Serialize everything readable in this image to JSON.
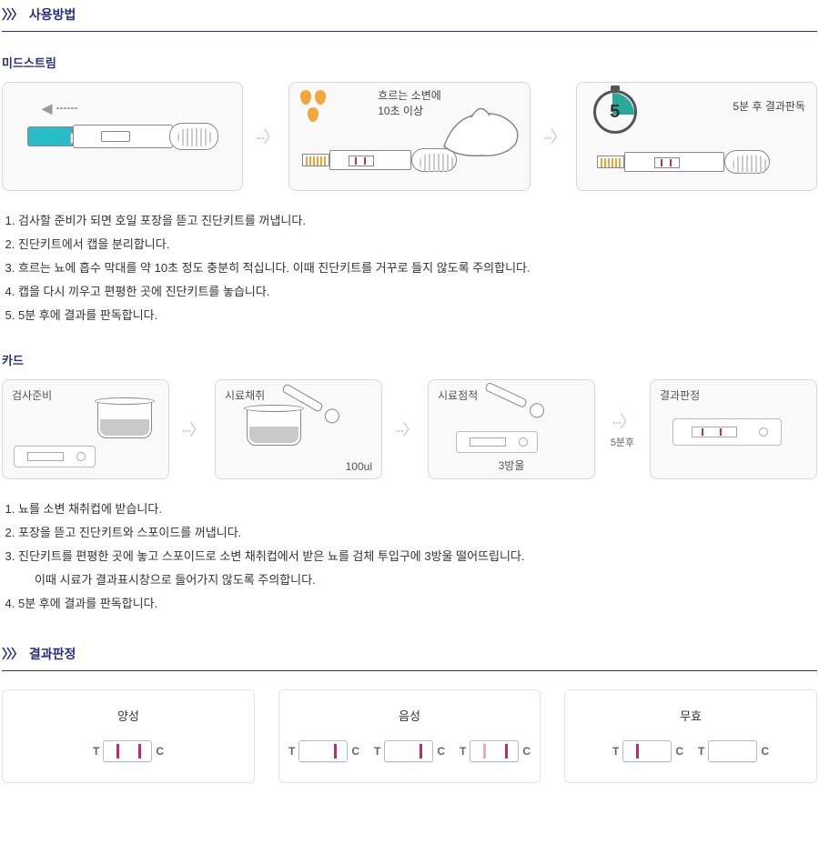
{
  "colors": {
    "brand": "#2a2e7e",
    "cap": "#28bcc6",
    "dropOrange": "#f2a63b",
    "testLine": "#c02c6b",
    "testLineFaint": "#e7a9c1",
    "timerAccent": "#2aa89a",
    "border": "#d8d8d8"
  },
  "section1": {
    "title": "사용방법",
    "chev": "〉〉〉"
  },
  "midstream": {
    "heading": "미드스트림",
    "arrowGlyph": "···〉",
    "step2_caption_l1": "흐르는 소변에",
    "step2_caption_l2": "10초 이상",
    "step3_caption": "5분 후 결과판독",
    "timer_number": "5",
    "instructions": [
      "검사할 준비가 되면 호일 포장을 뜯고 진단키트를 꺼냅니다.",
      "진단키트에서 캡을 분리합니다.",
      "흐르는 뇨에 흡수 막대를 약 10초 정도 충분히 적십니다. 이때 진단키트를 거꾸로 들지 않도록 주의합니다.",
      "캡을 다시 끼우고 편평한 곳에 진단키트를 놓습니다.",
      "5분 후에 결과를 판독합니다."
    ]
  },
  "card": {
    "heading": "카드",
    "arrowGlyph": "···〉",
    "labels": {
      "s1": "검사준비",
      "s2": "시료채취",
      "s3": "시료점적",
      "s4": "결과판정"
    },
    "s2_note": "100ul",
    "s3_note": "3방울",
    "arrow3_label": "5분후",
    "instructions": [
      "뇨를 소변 채취컵에 받습니다.",
      "포장을 뜯고 진단키트와 스포이드를 꺼냅니다.",
      "진단키트를 편평한 곳에 놓고 스포이드로 소변 채취컵에서 받은 뇨를 검체 투입구에 3방울 떨어뜨립니다.",
      "5분 후에 결과를 판독합니다."
    ],
    "instruction3_sub": "이때 시료가 결과표시창으로 들어가지 않도록 주의합니다."
  },
  "section2": {
    "title": "결과판정",
    "chev": "〉〉〉"
  },
  "results": {
    "T": "T",
    "C": "C",
    "positive": {
      "title": "양성",
      "windows": [
        {
          "bars": [
            {
              "pos": 14,
              "color": "#c02c6b"
            },
            {
              "pos": 38,
              "color": "#c02c6b"
            }
          ]
        }
      ]
    },
    "negative": {
      "title": "음성",
      "windows": [
        {
          "bars": [
            {
              "pos": 38,
              "color": "#c02c6b"
            }
          ]
        },
        {
          "bars": [
            {
              "pos": 38,
              "color": "#c02c6b"
            }
          ]
        },
        {
          "bars": [
            {
              "pos": 14,
              "color": "#e7a9c1"
            },
            {
              "pos": 38,
              "color": "#c02c6b"
            }
          ]
        }
      ]
    },
    "invalid": {
      "title": "무효",
      "windows": [
        {
          "bars": [
            {
              "pos": 14,
              "color": "#c02c6b"
            }
          ]
        },
        {
          "bars": []
        }
      ]
    }
  }
}
